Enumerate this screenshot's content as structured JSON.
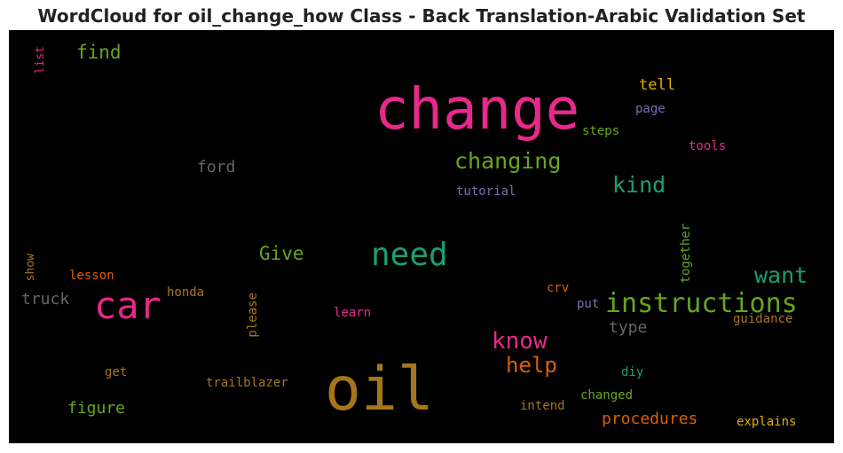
{
  "title": "WordCloud for oil_change_how Class - Back Translation-Arabic Validation Set",
  "chart_data": {
    "type": "wordcloud",
    "title": "WordCloud for oil_change_how Class - Back Translation-Arabic Validation Set",
    "background": "#000000",
    "words": [
      {
        "text": "change",
        "size": 64,
        "color": "#e7298a"
      },
      {
        "text": "oil",
        "size": 68,
        "color": "#a6761d"
      },
      {
        "text": "car",
        "size": 42,
        "color": "#e7298a"
      },
      {
        "text": "need",
        "size": 36,
        "color": "#1b9e77"
      },
      {
        "text": "instructions",
        "size": 30,
        "color": "#66a61e"
      },
      {
        "text": "changing",
        "size": 25,
        "color": "#66a61e"
      },
      {
        "text": "know",
        "size": 26,
        "color": "#e7298a"
      },
      {
        "text": "help",
        "size": 24,
        "color": "#d95f02"
      },
      {
        "text": "kind",
        "size": 25,
        "color": "#1b9e77"
      },
      {
        "text": "want",
        "size": 25,
        "color": "#1b9e77"
      },
      {
        "text": "Give",
        "size": 21,
        "color": "#66a61e"
      },
      {
        "text": "find",
        "size": 21,
        "color": "#66a61e"
      },
      {
        "text": "truck",
        "size": 18,
        "color": "#666666"
      },
      {
        "text": "ford",
        "size": 18,
        "color": "#666666"
      },
      {
        "text": "type",
        "size": 18,
        "color": "#666666"
      },
      {
        "text": "procedures",
        "size": 18,
        "color": "#d95f02"
      },
      {
        "text": "figure",
        "size": 18,
        "color": "#66a61e"
      },
      {
        "text": "tell",
        "size": 17,
        "color": "#e6ab02"
      },
      {
        "text": "trailblazer",
        "size": 14,
        "color": "#a6761d"
      },
      {
        "text": "guidance",
        "size": 14,
        "color": "#a6761d"
      },
      {
        "text": "explains",
        "size": 14,
        "color": "#e6ab02"
      },
      {
        "text": "intend",
        "size": 14,
        "color": "#a6761d"
      },
      {
        "text": "changed",
        "size": 14,
        "color": "#66a61e"
      },
      {
        "text": "tutorial",
        "size": 14,
        "color": "#7570b3"
      },
      {
        "text": "honda",
        "size": 14,
        "color": "#a6761d"
      },
      {
        "text": "lesson",
        "size": 14,
        "color": "#d95f02"
      },
      {
        "text": "learn",
        "size": 14,
        "color": "#e7298a"
      },
      {
        "text": "steps",
        "size": 14,
        "color": "#66a61e"
      },
      {
        "text": "tools",
        "size": 14,
        "color": "#e7298a"
      },
      {
        "text": "page",
        "size": 14,
        "color": "#7570b3"
      },
      {
        "text": "crv",
        "size": 14,
        "color": "#d95f02"
      },
      {
        "text": "put",
        "size": 14,
        "color": "#7570b3"
      },
      {
        "text": "diy",
        "size": 14,
        "color": "#1b9e77"
      },
      {
        "text": "get",
        "size": 14,
        "color": "#a6761d"
      },
      {
        "text": "please",
        "size": 14,
        "color": "#a6761d",
        "vertical": true
      },
      {
        "text": "together",
        "size": 14,
        "color": "#66a61e",
        "vertical": true
      },
      {
        "text": "show",
        "size": 13,
        "color": "#a6761d",
        "vertical": true
      },
      {
        "text": "list",
        "size": 13,
        "color": "#e7298a",
        "vertical": true
      }
    ]
  }
}
